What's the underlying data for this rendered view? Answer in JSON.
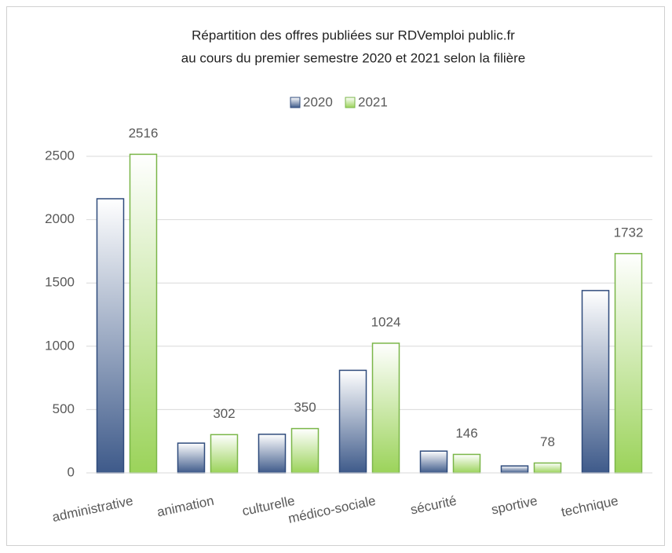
{
  "chart_data": {
    "type": "bar",
    "title": [
      "Répartition des offres publiées sur RDVemploi public.fr",
      "au  cours du premier semestre 2020 et 2021 selon la filière"
    ],
    "categories": [
      "administrative",
      "animation",
      "culturelle",
      "médico-sociale",
      "sécurité",
      "sportive",
      "technique"
    ],
    "series": [
      {
        "name": "2020",
        "color": "#3e5a8a",
        "border": "#2f4b7c",
        "values": [
          2165,
          235,
          305,
          810,
          172,
          55,
          1440
        ]
      },
      {
        "name": "2021",
        "color": "#9bd35a",
        "border": "#7ab648",
        "labels": true,
        "values": [
          2516,
          302,
          350,
          1024,
          146,
          78,
          1732
        ]
      }
    ],
    "ylim": [
      0,
      2500
    ],
    "yticks": [
      0,
      500,
      1000,
      1500,
      2000,
      2500
    ],
    "grid": true,
    "legend": "top"
  }
}
